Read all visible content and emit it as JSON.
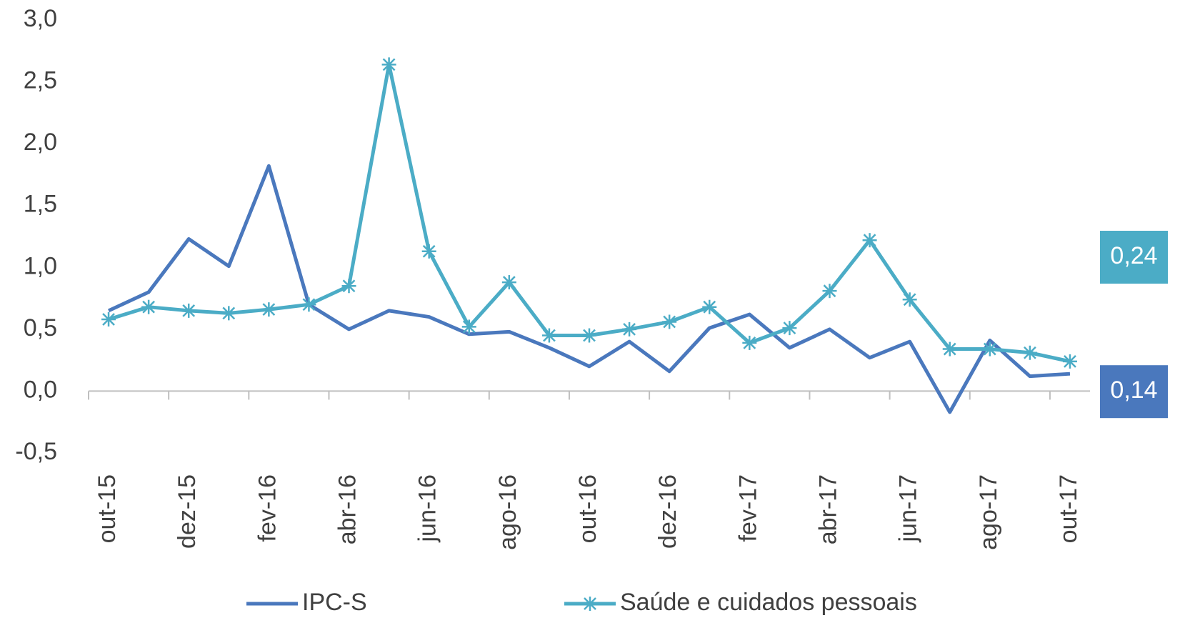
{
  "chart_data": {
    "type": "line",
    "categories": [
      "out-15",
      null,
      "dez-15",
      null,
      "fev-16",
      null,
      "abr-16",
      null,
      "jun-16",
      null,
      "ago-16",
      null,
      "out-16",
      null,
      "dez-16",
      null,
      "fev-17",
      null,
      "abr-17",
      null,
      "jun-17",
      null,
      "ago-17",
      null,
      "out-17"
    ],
    "series": [
      {
        "name": "IPC-S",
        "color": "#4a78bd",
        "marker": "none",
        "values": [
          0.65,
          0.8,
          1.23,
          1.01,
          1.82,
          0.7,
          0.5,
          0.65,
          0.6,
          0.46,
          0.48,
          0.35,
          0.2,
          0.4,
          0.16,
          0.51,
          0.62,
          0.35,
          0.5,
          0.27,
          0.4,
          -0.17,
          0.41,
          0.12,
          0.14
        ],
        "value_labels": [
          null,
          null,
          null,
          null,
          null,
          null,
          null,
          null,
          null,
          null,
          null,
          null,
          null,
          null,
          null,
          null,
          null,
          null,
          null,
          null,
          null,
          null,
          null,
          null,
          "0,14"
        ]
      },
      {
        "name": "Saúde e cuidados pessoais",
        "color": "#4bacc6",
        "marker": "asterisk",
        "values": [
          0.58,
          0.68,
          0.65,
          0.63,
          0.66,
          0.7,
          0.85,
          2.64,
          1.13,
          0.52,
          0.88,
          0.45,
          0.45,
          0.5,
          0.56,
          0.68,
          0.39,
          0.51,
          0.81,
          1.22,
          0.74,
          0.34,
          0.34,
          0.31,
          0.24
        ],
        "value_labels": [
          null,
          null,
          null,
          null,
          null,
          null,
          null,
          null,
          null,
          null,
          null,
          null,
          null,
          null,
          null,
          null,
          null,
          null,
          null,
          null,
          null,
          null,
          null,
          null,
          "0,24"
        ]
      }
    ],
    "ylim": [
      -0.5,
      3.0
    ],
    "yticks": [
      {
        "value": -0.5,
        "label": "-0,5"
      },
      {
        "value": 0,
        "label": "0,0"
      },
      {
        "value": 0.5,
        "label": "0,5"
      },
      {
        "value": 1.0,
        "label": "1,0"
      },
      {
        "value": 1.5,
        "label": "1,5"
      },
      {
        "value": 2.0,
        "label": "2,0"
      },
      {
        "value": 2.5,
        "label": "2,5"
      },
      {
        "value": 3.0,
        "label": "3,0"
      }
    ],
    "grid": false,
    "legend": "bottom"
  }
}
